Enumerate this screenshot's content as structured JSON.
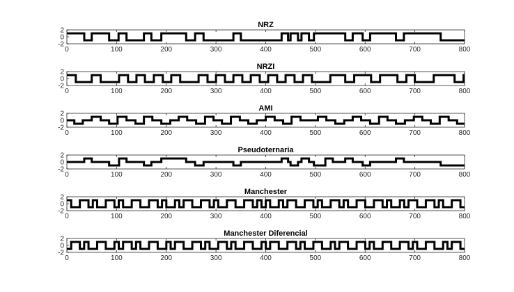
{
  "chart_data": [
    {
      "type": "line",
      "title": "NRZ",
      "xlim": [
        0,
        800
      ],
      "ylim": [
        -2,
        2
      ],
      "xticks": [
        "0",
        "100",
        "200",
        "300",
        "400",
        "500",
        "600",
        "700",
        "800"
      ],
      "yticks": [
        "2",
        "0",
        "-2"
      ],
      "grid": false,
      "x": [
        0,
        35,
        35,
        50,
        50,
        85,
        85,
        104,
        104,
        120,
        120,
        155,
        155,
        170,
        170,
        190,
        190,
        240,
        240,
        258,
        258,
        275,
        275,
        335,
        335,
        350,
        350,
        432,
        432,
        445,
        445,
        450,
        450,
        465,
        465,
        472,
        472,
        487,
        487,
        497,
        497,
        560,
        560,
        575,
        575,
        595,
        595,
        610,
        610,
        662,
        662,
        678,
        678,
        752,
        752,
        800
      ],
      "y": [
        1,
        1,
        -1,
        -1,
        1,
        1,
        -1,
        -1,
        1,
        1,
        -1,
        -1,
        1,
        1,
        -1,
        -1,
        1,
        1,
        -1,
        -1,
        1,
        1,
        -1,
        -1,
        1,
        1,
        -1,
        -1,
        1,
        1,
        -1,
        -1,
        1,
        1,
        -1,
        -1,
        1,
        1,
        -1,
        -1,
        1,
        1,
        -1,
        -1,
        1,
        1,
        -1,
        -1,
        1,
        1,
        -1,
        -1,
        1,
        1,
        -1,
        -1
      ]
    },
    {
      "type": "line",
      "title": "NRZI",
      "xlim": [
        0,
        800
      ],
      "ylim": [
        -2,
        2
      ],
      "xticks": [
        "0",
        "100",
        "200",
        "300",
        "400",
        "500",
        "600",
        "700",
        "800"
      ],
      "yticks": [
        "2",
        "0",
        "-2"
      ],
      "grid": false,
      "x": [
        0,
        18,
        18,
        50,
        50,
        68,
        68,
        105,
        105,
        123,
        123,
        140,
        140,
        157,
        157,
        175,
        175,
        193,
        193,
        210,
        210,
        228,
        228,
        265,
        265,
        283,
        283,
        300,
        300,
        318,
        318,
        335,
        335,
        353,
        353,
        370,
        370,
        388,
        388,
        405,
        405,
        423,
        423,
        440,
        440,
        458,
        458,
        475,
        475,
        493,
        493,
        530,
        530,
        560,
        560,
        578,
        578,
        612,
        612,
        630,
        630,
        665,
        665,
        683,
        683,
        700,
        700,
        738,
        738,
        780,
        780,
        798,
        798,
        800
      ],
      "y": [
        1,
        1,
        -1,
        -1,
        1,
        1,
        -1,
        -1,
        1,
        1,
        -1,
        -1,
        1,
        1,
        -1,
        -1,
        1,
        1,
        -1,
        -1,
        1,
        1,
        -1,
        -1,
        1,
        1,
        -1,
        -1,
        1,
        1,
        -1,
        -1,
        1,
        1,
        -1,
        -1,
        1,
        1,
        -1,
        -1,
        1,
        1,
        -1,
        -1,
        1,
        1,
        -1,
        -1,
        1,
        1,
        -1,
        -1,
        1,
        1,
        -1,
        -1,
        1,
        1,
        -1,
        -1,
        1,
        1,
        -1,
        -1,
        1,
        1,
        -1,
        -1,
        1,
        1,
        -1,
        -1,
        1,
        1
      ]
    },
    {
      "type": "line",
      "title": "AMI",
      "xlim": [
        0,
        800
      ],
      "ylim": [
        -2,
        2
      ],
      "xticks": [
        "0",
        "100",
        "200",
        "300",
        "400",
        "500",
        "600",
        "700",
        "800"
      ],
      "yticks": [
        "2",
        "0",
        "-2"
      ],
      "grid": false,
      "x": [
        0,
        15,
        15,
        32,
        32,
        50,
        50,
        68,
        68,
        85,
        85,
        102,
        102,
        120,
        120,
        138,
        138,
        155,
        155,
        172,
        172,
        190,
        190,
        208,
        208,
        225,
        225,
        242,
        242,
        260,
        260,
        278,
        278,
        295,
        295,
        312,
        312,
        330,
        330,
        348,
        348,
        365,
        365,
        382,
        382,
        400,
        400,
        418,
        418,
        435,
        435,
        452,
        452,
        470,
        470,
        488,
        488,
        505,
        505,
        522,
        522,
        540,
        540,
        558,
        558,
        575,
        575,
        592,
        592,
        610,
        610,
        628,
        628,
        645,
        645,
        662,
        662,
        680,
        680,
        698,
        698,
        715,
        715,
        732,
        732,
        750,
        750,
        768,
        768,
        785,
        785,
        800
      ],
      "y": [
        0,
        0,
        -1,
        -1,
        0,
        0,
        1,
        1,
        0,
        0,
        -1,
        -1,
        1,
        1,
        0,
        0,
        -1,
        -1,
        1,
        1,
        0,
        0,
        -1,
        -1,
        0,
        0,
        1,
        1,
        0,
        0,
        -1,
        -1,
        1,
        1,
        0,
        0,
        -1,
        -1,
        1,
        1,
        0,
        0,
        -1,
        -1,
        0,
        0,
        1,
        1,
        0,
        0,
        -1,
        -1,
        1,
        1,
        0,
        0,
        0,
        0,
        1,
        1,
        0,
        0,
        -1,
        -1,
        0,
        0,
        1,
        1,
        0,
        0,
        -1,
        -1,
        1,
        1,
        0,
        0,
        -1,
        -1,
        0,
        0,
        1,
        1,
        0,
        0,
        -1,
        -1,
        1,
        1,
        0,
        0,
        -1,
        -1
      ]
    },
    {
      "type": "line",
      "title": "Pseudoternaria",
      "xlim": [
        0,
        800
      ],
      "ylim": [
        -2,
        2
      ],
      "xticks": [
        "0",
        "100",
        "200",
        "300",
        "400",
        "500",
        "600",
        "700",
        "800"
      ],
      "yticks": [
        "2",
        "0",
        "-2"
      ],
      "grid": false,
      "x": [
        0,
        35,
        35,
        50,
        50,
        85,
        85,
        105,
        105,
        120,
        120,
        155,
        155,
        170,
        170,
        190,
        190,
        240,
        240,
        258,
        258,
        275,
        275,
        335,
        335,
        350,
        350,
        432,
        432,
        445,
        445,
        450,
        450,
        465,
        465,
        472,
        472,
        487,
        487,
        497,
        497,
        520,
        520,
        535,
        535,
        560,
        560,
        575,
        575,
        595,
        595,
        610,
        610,
        662,
        662,
        678,
        678,
        752,
        752,
        800
      ],
      "y": [
        0,
        0,
        1,
        1,
        0,
        0,
        -1,
        -1,
        1,
        1,
        0,
        0,
        -1,
        -1,
        0,
        0,
        1,
        1,
        0,
        0,
        -1,
        -1,
        0,
        0,
        -1,
        -1,
        0,
        0,
        1,
        1,
        0,
        0,
        -1,
        -1,
        0,
        0,
        1,
        1,
        0,
        0,
        -1,
        -1,
        1,
        1,
        0,
        0,
        1,
        1,
        0,
        0,
        -1,
        -1,
        0,
        0,
        1,
        1,
        0,
        0,
        -1,
        -1
      ]
    },
    {
      "type": "line",
      "title": "Manchester",
      "xlim": [
        0,
        800
      ],
      "ylim": [
        -2,
        2
      ],
      "xticks": [
        "0",
        "100",
        "200",
        "300",
        "400",
        "500",
        "600",
        "700",
        "800"
      ],
      "yticks": [
        "2",
        "0",
        "-2"
      ],
      "grid": false,
      "period": 17.4,
      "bits": [
        1,
        0,
        1,
        1,
        0,
        1,
        1,
        0,
        1,
        0,
        1,
        1,
        0,
        0,
        1,
        0,
        1,
        1,
        0,
        1,
        0,
        1,
        1,
        1,
        0,
        0,
        1,
        0,
        1,
        1,
        0,
        1,
        1,
        0,
        1,
        0,
        1,
        1,
        0,
        0,
        1,
        0,
        1,
        1,
        0,
        1
      ],
      "levels": [
        -1,
        1
      ]
    },
    {
      "type": "line",
      "title": "Manchester Diferencial",
      "xlim": [
        0,
        800
      ],
      "ylim": [
        -2,
        2
      ],
      "xticks": [
        "0",
        "100",
        "200",
        "300",
        "400",
        "500",
        "600",
        "700",
        "800"
      ],
      "yticks": [
        "2",
        "0",
        "-2"
      ],
      "grid": false,
      "period": 17.4,
      "bits": [
        0,
        1,
        1,
        0,
        1,
        0,
        0,
        1,
        1,
        0,
        1,
        0,
        0,
        1,
        0,
        1,
        1,
        0,
        1,
        1,
        0,
        1,
        0,
        0,
        1,
        0,
        1,
        1,
        0,
        1,
        0,
        0,
        1,
        0,
        1,
        1,
        0,
        1,
        0,
        1,
        1,
        0,
        1,
        0,
        0,
        1
      ],
      "levels": [
        -1,
        1
      ]
    }
  ]
}
